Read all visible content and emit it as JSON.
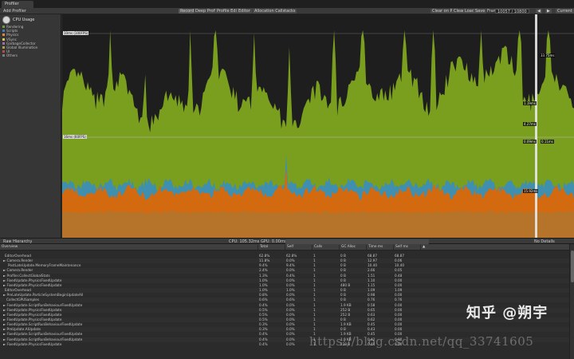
{
  "window": {
    "tab_title": "Profiler"
  },
  "toolbar": {
    "add_profiler": "Add Profiler",
    "record": "Record",
    "deep_profile": "Deep Profile",
    "profile_editor": "Profile Editor",
    "target": "Editor",
    "allocation_callstacks": "Allocation Callstacks",
    "clear_on_play": "Clear on Play",
    "clear": "Clear",
    "load": "Load",
    "save": "Save",
    "frame_label": "Frame:",
    "frame_value": "10057 / 10800",
    "prev_icon": "◀",
    "next_icon": "▶",
    "current": "Current"
  },
  "cpu_usage": {
    "title": "CPU Usage",
    "categories": [
      {
        "name": "Rendering",
        "color": "#6f9b3a"
      },
      {
        "name": "Scripts",
        "color": "#3d7ab8"
      },
      {
        "name": "Physics",
        "color": "#e1893e"
      },
      {
        "name": "VSync",
        "color": "#d9c94b"
      },
      {
        "name": "GarbageCollector",
        "color": "#9d6bb5"
      },
      {
        "name": "Global Illumination",
        "color": "#a6a641"
      },
      {
        "name": "UI",
        "color": "#b84a4a"
      },
      {
        "name": "Others",
        "color": "#7c7c7c"
      }
    ]
  },
  "graph": {
    "line_10ms": "10ms (100FPS)",
    "line_16ms": "16ms (60FPS)",
    "marker_labels": [
      "33.75ms",
      "1.19ms",
      "4.27ms",
      "0.09ms",
      "0.11ms",
      "15.92ms"
    ],
    "colors": {
      "green": "#7a9e1e",
      "orange": "#d46a10",
      "blue": "#3f8fb0",
      "bg": "#1e1e1e",
      "base": "#a07c3c"
    }
  },
  "hierarchy": {
    "view": "Raw Hierarchy",
    "cpu_info": "CPU: 105.32ms   GPU: 0.00ms",
    "no_details": "No Details",
    "columns": [
      "Overview",
      "Total",
      "Self",
      "Calls",
      "GC Alloc",
      "Time ms",
      "Self ms"
    ],
    "rows": [
      [
        "EditorOverhead",
        "62.8%",
        "62.8%",
        "1",
        "0 B",
        "68.87",
        "68.87"
      ],
      [
        "► Camera.Render",
        "11.8%",
        "0.0%",
        "1",
        "0 B",
        "12.97",
        "0.06"
      ],
      [
        "PostLateUpdate.MemoryFrameMaintenance",
        "9.4%",
        "9.4%",
        "1",
        "0 B",
        "10.40",
        "10.40"
      ],
      [
        "► Camera.Render",
        "2.4%",
        "0.0%",
        "1",
        "0 B",
        "2.66",
        "0.05"
      ],
      [
        "► Profiler.CollectGlobalStats",
        "1.3%",
        "0.4%",
        "1",
        "0 B",
        "1.51",
        "0.48"
      ],
      [
        "► FixedUpdate.PhysicsFixedUpdate",
        "1.0%",
        "0.0%",
        "1",
        "0 B",
        "1.10",
        "0.00"
      ],
      [
        "► FixedUpdate.PhysicsFixedUpdate",
        "1.0%",
        "0.0%",
        "1",
        "480 B",
        "1.15",
        "0.00"
      ],
      [
        "EditorOverhead",
        "1.0%",
        "1.0%",
        "1",
        "0 B",
        "1.09",
        "1.09"
      ],
      [
        "► PreLateUpdate.ParticleSystemBeginUpdateAll",
        "0.8%",
        "0.0%",
        "1",
        "0 B",
        "0.98",
        "0.00"
      ],
      [
        "CollectGPUSamples",
        "0.6%",
        "0.6%",
        "1",
        "0 B",
        "0.76",
        "0.76"
      ],
      [
        "► FixedUpdate.ScriptRunBehaviourFixedUpdate",
        "0.4%",
        "0.0%",
        "1",
        "1.9 KB",
        "0.58",
        "0.00"
      ],
      [
        "► FixedUpdate.PhysicsFixedUpdate",
        "0.5%",
        "0.0%",
        "1",
        "252 B",
        "0.65",
        "0.00"
      ],
      [
        "► FixedUpdate.PhysicsFixedUpdate",
        "0.5%",
        "0.0%",
        "1",
        "252 B",
        "0.63",
        "0.00"
      ],
      [
        "► FixedUpdate.PhysicsFixedUpdate",
        "0.5%",
        "0.0%",
        "1",
        "0 B",
        "0.62",
        "0.00"
      ],
      [
        "► FixedUpdate.ScriptRunBehaviourFixedUpdate",
        "0.3%",
        "0.0%",
        "1",
        "1.9 KB",
        "0.45",
        "0.00"
      ],
      [
        "► PreUpdate.AIUpdate",
        "0.3%",
        "0.0%",
        "1",
        "0 B",
        "0.43",
        "0.00"
      ],
      [
        "► FixedUpdate.ScriptRunBehaviourFixedUpdate",
        "0.4%",
        "0.0%",
        "1",
        "1.9 KB",
        "0.45",
        "0.00"
      ],
      [
        "► FixedUpdate.ScriptRunBehaviourFixedUpdate",
        "0.4%",
        "0.0%",
        "1",
        "1.9 KB",
        "0.42",
        "0.00"
      ],
      [
        "► FixedUpdate.PhysicsFixedUpdate",
        "0.4%",
        "0.0%",
        "1",
        "228 B",
        "0.44",
        "0.00"
      ]
    ]
  },
  "watermark": {
    "brand": "知乎 @朔宇",
    "url": "https://blog.csdn.net/qq_33741605"
  }
}
